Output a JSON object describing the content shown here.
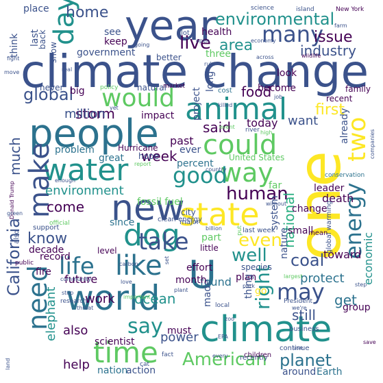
{
  "colors": {
    "purple": "#440154",
    "indigo": "#3b528b",
    "navy": "#414487",
    "blue": "#2c728e",
    "teal": "#21918c",
    "green": "#28ae80",
    "lightgreen": "#5ec962",
    "lime": "#addc30",
    "yellow": "#fde725"
  },
  "words": [
    "climate change",
    "year",
    "people",
    "one",
    "animal",
    "climate",
    "new",
    "state",
    "world",
    "could",
    "water",
    "dog",
    "time",
    "like",
    "would",
    "way",
    "make",
    "day",
    "need",
    "take",
    "environmental",
    "many",
    "life",
    "American",
    "good",
    "energy",
    "U",
    "two",
    "California",
    "right",
    "say",
    "may",
    "human",
    "planet",
    "coal",
    "even",
    "live",
    "area",
    "global",
    "first",
    "home",
    "issue",
    "said",
    "week",
    "industry",
    "government",
    "much",
    "storm",
    "ocean",
    "environment",
    "well",
    "national",
    "food",
    "million",
    "know",
    "come",
    "fossil fuel",
    "today",
    "want",
    "United States",
    "percent",
    "past",
    "work",
    "also",
    "elephant",
    "help",
    "nation",
    "action",
    "around",
    "Earth",
    "power",
    "must",
    "found",
    "plan",
    "protect",
    "still",
    "get",
    "future",
    "since",
    "problem",
    "great",
    "hope",
    "Hurricane",
    "ever",
    "leader",
    "death",
    "change",
    "small",
    "far",
    "system",
    "nature",
    "toward",
    "economic",
    "group",
    "made",
    "thing",
    "go",
    "effort",
    "part",
    "little",
    "scientist",
    "month",
    "record",
    "fire",
    "decade",
    "level",
    "health",
    "project",
    "long",
    "three",
    "look",
    "become",
    "already",
    "recent",
    "family",
    "place",
    "think",
    "last",
    "back",
    "show",
    "see",
    "keep",
    "lot",
    "better",
    "big",
    "never",
    "impact",
    "natural",
    "policy",
    "cost",
    "recently",
    "species",
    "mean",
    "conservation",
    "global warming",
    "clean energy",
    "Donald Trump",
    "city",
    "major",
    "last week",
    "billion",
    "put",
    "also",
    "support",
    "official",
    "public",
    "carbon",
    "love",
    "stop",
    "research",
    "threat",
    "community",
    "cat",
    "fact",
    "every",
    "use",
    "children",
    "continue",
    "we're",
    "business",
    "President",
    "save",
    "land",
    "companies",
    "science",
    "island",
    "New York",
    "farm",
    "economy",
    "across",
    "wildlife",
    "move",
    "fight",
    "real",
    "open",
    "going",
    "market",
    "job",
    "killed",
    "event",
    "river",
    "high",
    "yet",
    "country",
    "report",
    "enough",
    "without",
    "green",
    "set",
    "EPA",
    "largest",
    "plant",
    "important",
    "park",
    "local",
    "step",
    "zoo",
    "rule",
    "find"
  ]
}
